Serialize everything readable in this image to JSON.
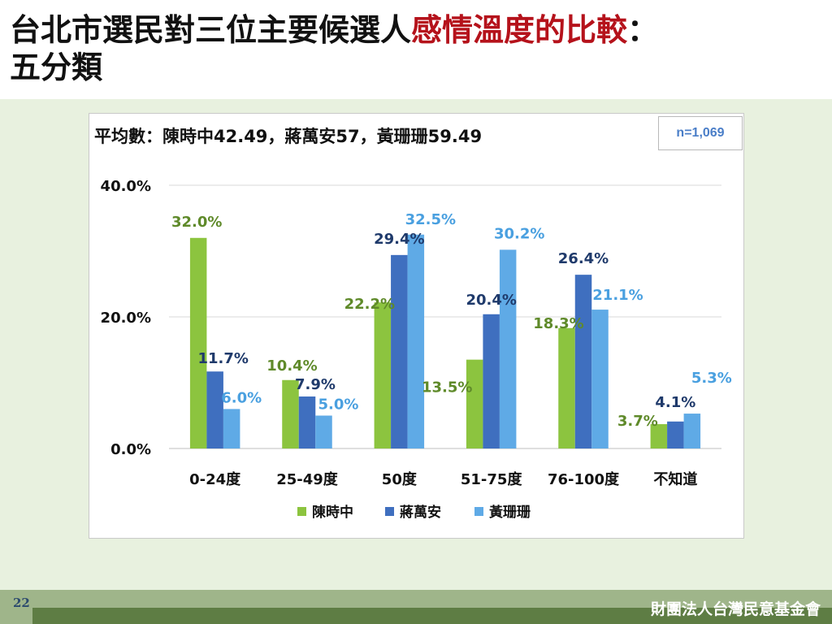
{
  "slide": {
    "title_main": "台北市選民對三位主要候選人",
    "title_accent": "感情溫度的比較",
    "title_tail": "：",
    "title_line2": "五分類",
    "average_text": "平均數：陳時中42.49，蔣萬安57，黃珊珊59.49",
    "sample_size": "n=1,069",
    "page_number": "22",
    "organization": "財團法人台灣民意基金會"
  },
  "colors": {
    "accent_title": "#b5121b",
    "series": [
      "#8cc43f",
      "#3f6fbf",
      "#5faae6"
    ],
    "label_text": [
      "#5f8a2a",
      "#1f3a6b",
      "#4aa0e0"
    ]
  },
  "chart_data": {
    "type": "bar",
    "categories": [
      "0-24度",
      "25-49度",
      "50度",
      "51-75度",
      "76-100度",
      "不知道"
    ],
    "series": [
      {
        "name": "陳時中",
        "values": [
          32.0,
          10.4,
          22.2,
          13.5,
          18.3,
          3.7
        ]
      },
      {
        "name": "蔣萬安",
        "values": [
          11.7,
          7.9,
          29.4,
          20.4,
          26.4,
          4.1
        ]
      },
      {
        "name": "黃珊珊",
        "values": [
          6.0,
          5.0,
          32.5,
          30.2,
          21.1,
          5.3
        ]
      }
    ],
    "y_ticks": [
      "0.0%",
      "20.0%",
      "40.0%"
    ],
    "ylim": [
      0,
      40
    ],
    "grid": true,
    "legend": "bottom"
  }
}
